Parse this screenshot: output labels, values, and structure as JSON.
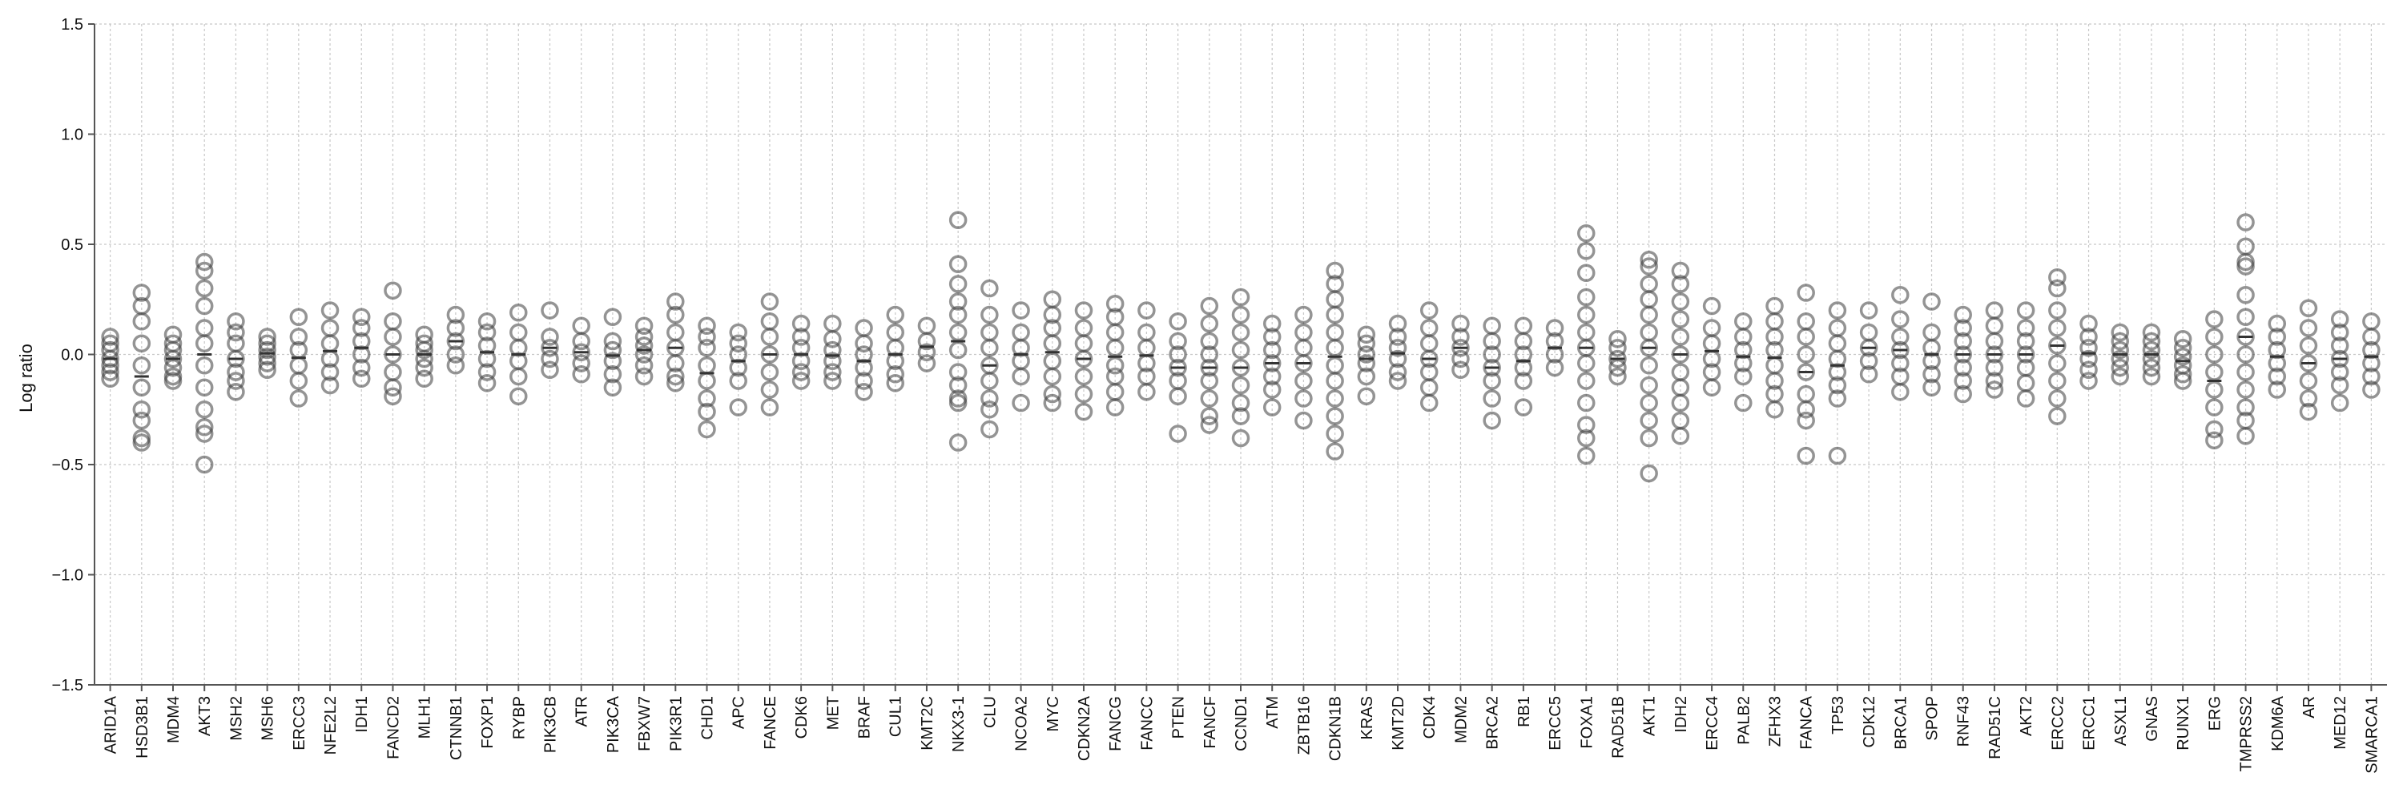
{
  "chart_data": {
    "type": "scatter",
    "ylabel": "Log ratio",
    "xlabel": "",
    "ylim": [
      -1.5,
      1.5
    ],
    "yticks": [
      "1.5",
      "1.0",
      "0.5",
      "0.0",
      "−0.5",
      "−1.0",
      "−1.5"
    ],
    "grid": true,
    "categories": [
      "ARID1A",
      "HSD3B1",
      "MDM4",
      "AKT3",
      "MSH2",
      "MSH6",
      "ERCC3",
      "NFE2L2",
      "IDH1",
      "FANCD2",
      "MLH1",
      "CTNNB1",
      "FOXP1",
      "RYBP",
      "PIK3CB",
      "ATR",
      "PIK3CA",
      "FBXW7",
      "PIK3R1",
      "CHD1",
      "APC",
      "FANCE",
      "CDK6",
      "MET",
      "BRAF",
      "CUL1",
      "KMT2C",
      "NKX3-1",
      "CLU",
      "NCOA2",
      "MYC",
      "CDKN2A",
      "FANCG",
      "FANCC",
      "PTEN",
      "FANCF",
      "CCND1",
      "ATM",
      "ZBTB16",
      "CDKN1B",
      "KRAS",
      "KMT2D",
      "CDK4",
      "MDM2",
      "BRCA2",
      "RB1",
      "ERCC5",
      "FOXA1",
      "RAD51B",
      "AKT1",
      "IDH2",
      "ERCC4",
      "PALB2",
      "ZFHX3",
      "FANCA",
      "TP53",
      "CDK12",
      "BRCA1",
      "SPOP",
      "RNF43",
      "RAD51C",
      "AKT2",
      "ERCC2",
      "ERCC1",
      "ASXL1",
      "GNAS",
      "RUNX1",
      "ERG",
      "TMPRSS2",
      "KDM6A",
      "AR",
      "MED12",
      "SMARCA1"
    ],
    "values": [
      [
        0.08,
        0.05,
        0.02,
        -0.02,
        -0.05,
        -0.08,
        -0.11
      ],
      [
        0.28,
        0.22,
        0.15,
        0.05,
        -0.05,
        -0.15,
        -0.25,
        -0.3,
        -0.38,
        -0.4
      ],
      [
        0.09,
        0.05,
        0.02,
        -0.02,
        -0.06,
        -0.1,
        -0.12
      ],
      [
        0.42,
        0.38,
        0.3,
        0.22,
        0.12,
        0.05,
        -0.05,
        -0.15,
        -0.25,
        -0.33,
        -0.36,
        -0.5
      ],
      [
        0.15,
        0.1,
        0.05,
        -0.02,
        -0.08,
        -0.12,
        -0.17
      ],
      [
        0.08,
        0.05,
        0.02,
        -0.01,
        -0.04,
        -0.07
      ],
      [
        0.17,
        0.08,
        0.02,
        -0.05,
        -0.12,
        -0.2
      ],
      [
        0.2,
        0.12,
        0.05,
        -0.02,
        -0.08,
        -0.14
      ],
      [
        0.17,
        0.12,
        0.06,
        0.0,
        -0.06,
        -0.11
      ],
      [
        0.29,
        0.15,
        0.08,
        0.0,
        -0.08,
        -0.15,
        -0.19
      ],
      [
        0.09,
        0.05,
        0.02,
        -0.02,
        -0.06,
        -0.11
      ],
      [
        0.18,
        0.12,
        0.06,
        0.0,
        -0.05
      ],
      [
        0.15,
        0.1,
        0.04,
        -0.02,
        -0.08,
        -0.13
      ],
      [
        0.19,
        0.1,
        0.03,
        -0.03,
        -0.1,
        -0.19
      ],
      [
        0.2,
        0.08,
        0.03,
        -0.02,
        -0.07
      ],
      [
        0.13,
        0.06,
        0.01,
        -0.04,
        -0.09
      ],
      [
        0.17,
        0.06,
        0.02,
        -0.03,
        -0.09,
        -0.15
      ],
      [
        0.13,
        0.08,
        0.04,
        0.0,
        -0.05,
        -0.1
      ],
      [
        0.24,
        0.18,
        0.1,
        0.03,
        -0.04,
        -0.1,
        -0.13
      ],
      [
        0.13,
        0.08,
        0.03,
        -0.05,
        -0.12,
        -0.2,
        -0.26,
        -0.34
      ],
      [
        0.1,
        0.05,
        0.0,
        -0.06,
        -0.12,
        -0.24
      ],
      [
        0.24,
        0.15,
        0.08,
        0.0,
        -0.08,
        -0.16,
        -0.24
      ],
      [
        0.14,
        0.08,
        0.03,
        -0.03,
        -0.08,
        -0.12
      ],
      [
        0.14,
        0.07,
        0.02,
        -0.03,
        -0.08,
        -0.12
      ],
      [
        0.12,
        0.05,
        0.0,
        -0.06,
        -0.12,
        -0.17
      ],
      [
        0.18,
        0.1,
        0.03,
        -0.03,
        -0.09,
        -0.13
      ],
      [
        0.13,
        0.06,
        0.01,
        -0.04
      ],
      [
        0.61,
        0.41,
        0.32,
        0.24,
        0.18,
        0.1,
        0.02,
        -0.08,
        -0.14,
        -0.2,
        -0.22,
        -0.4
      ],
      [
        0.3,
        0.18,
        0.1,
        0.03,
        -0.05,
        -0.12,
        -0.2,
        -0.25,
        -0.34
      ],
      [
        0.2,
        0.1,
        0.03,
        -0.03,
        -0.1,
        -0.22
      ],
      [
        0.25,
        0.18,
        0.12,
        0.05,
        -0.03,
        -0.1,
        -0.18,
        -0.22
      ],
      [
        0.2,
        0.12,
        0.05,
        -0.02,
        -0.1,
        -0.18,
        -0.26
      ],
      [
        0.23,
        0.17,
        0.1,
        0.03,
        -0.05,
        -0.1,
        -0.17,
        -0.24
      ],
      [
        0.2,
        0.1,
        0.03,
        -0.04,
        -0.1,
        -0.17
      ],
      [
        0.15,
        0.06,
        0.0,
        -0.06,
        -0.12,
        -0.19,
        -0.36
      ],
      [
        0.22,
        0.14,
        0.06,
        0.0,
        -0.06,
        -0.12,
        -0.2,
        -0.28,
        -0.32
      ],
      [
        0.26,
        0.18,
        0.1,
        0.02,
        -0.06,
        -0.14,
        -0.22,
        -0.28,
        -0.38
      ],
      [
        0.14,
        0.08,
        0.02,
        -0.04,
        -0.1,
        -0.16,
        -0.24
      ],
      [
        0.18,
        0.1,
        0.03,
        -0.04,
        -0.12,
        -0.2,
        -0.3
      ],
      [
        0.38,
        0.32,
        0.25,
        0.18,
        0.1,
        0.03,
        -0.05,
        -0.12,
        -0.2,
        -0.28,
        -0.36,
        -0.44
      ],
      [
        0.09,
        0.05,
        0.0,
        -0.04,
        -0.1,
        -0.19
      ],
      [
        0.14,
        0.08,
        0.03,
        -0.02,
        -0.08,
        -0.12
      ],
      [
        0.2,
        0.12,
        0.05,
        -0.02,
        -0.08,
        -0.15,
        -0.22
      ],
      [
        0.14,
        0.08,
        0.03,
        -0.02,
        -0.07
      ],
      [
        0.13,
        0.06,
        0.0,
        -0.06,
        -0.12,
        -0.2,
        -0.3
      ],
      [
        0.13,
        0.06,
        0.0,
        -0.06,
        -0.12,
        -0.24
      ],
      [
        0.12,
        0.06,
        0.0,
        -0.06
      ],
      [
        0.55,
        0.47,
        0.37,
        0.26,
        0.18,
        0.1,
        0.03,
        -0.04,
        -0.12,
        -0.22,
        -0.32,
        -0.38,
        -0.46
      ],
      [
        0.07,
        0.03,
        -0.02,
        -0.06,
        -0.1
      ],
      [
        0.43,
        0.4,
        0.32,
        0.25,
        0.18,
        0.1,
        0.03,
        -0.05,
        -0.14,
        -0.22,
        -0.3,
        -0.38,
        -0.54
      ],
      [
        0.38,
        0.32,
        0.24,
        0.16,
        0.08,
        0.0,
        -0.08,
        -0.15,
        -0.22,
        -0.3,
        -0.37
      ],
      [
        0.22,
        0.12,
        0.05,
        -0.02,
        -0.08,
        -0.15
      ],
      [
        0.15,
        0.08,
        0.02,
        -0.04,
        -0.1,
        -0.22
      ],
      [
        0.22,
        0.15,
        0.08,
        0.02,
        -0.05,
        -0.12,
        -0.18,
        -0.25
      ],
      [
        0.28,
        0.15,
        0.08,
        0.0,
        -0.08,
        -0.18,
        -0.25,
        -0.3,
        -0.46
      ],
      [
        0.2,
        0.12,
        0.05,
        -0.02,
        -0.08,
        -0.14,
        -0.2,
        -0.46
      ],
      [
        0.2,
        0.1,
        0.03,
        -0.03,
        -0.09
      ],
      [
        0.27,
        0.16,
        0.08,
        0.02,
        -0.04,
        -0.1,
        -0.17
      ],
      [
        0.24,
        0.1,
        0.03,
        -0.03,
        -0.09,
        -0.15
      ],
      [
        0.18,
        0.12,
        0.06,
        0.0,
        -0.06,
        -0.12,
        -0.18
      ],
      [
        0.2,
        0.13,
        0.06,
        0.0,
        -0.06,
        -0.12,
        -0.16
      ],
      [
        0.2,
        0.12,
        0.06,
        0.0,
        -0.06,
        -0.13,
        -0.2
      ],
      [
        0.35,
        0.3,
        0.2,
        0.12,
        0.04,
        -0.04,
        -0.12,
        -0.2,
        -0.28
      ],
      [
        0.14,
        0.08,
        0.03,
        -0.02,
        -0.07,
        -0.12
      ],
      [
        0.1,
        0.06,
        0.02,
        -0.02,
        -0.06,
        -0.1
      ],
      [
        0.1,
        0.06,
        0.02,
        -0.02,
        -0.06,
        -0.1
      ],
      [
        0.07,
        0.03,
        -0.01,
        -0.05,
        -0.09,
        -0.12
      ],
      [
        0.16,
        0.08,
        0.0,
        -0.08,
        -0.16,
        -0.24,
        -0.34,
        -0.39
      ],
      [
        0.6,
        0.49,
        0.42,
        0.4,
        0.27,
        0.17,
        0.08,
        0.0,
        -0.08,
        -0.16,
        -0.24,
        -0.3,
        -0.37
      ],
      [
        0.14,
        0.08,
        0.02,
        -0.04,
        -0.1,
        -0.16
      ],
      [
        0.21,
        0.12,
        0.04,
        -0.04,
        -0.12,
        -0.2,
        -0.26
      ],
      [
        0.16,
        0.1,
        0.04,
        -0.02,
        -0.08,
        -0.14,
        -0.22
      ],
      [
        0.15,
        0.08,
        0.02,
        -0.04,
        -0.1,
        -0.16
      ]
    ]
  }
}
